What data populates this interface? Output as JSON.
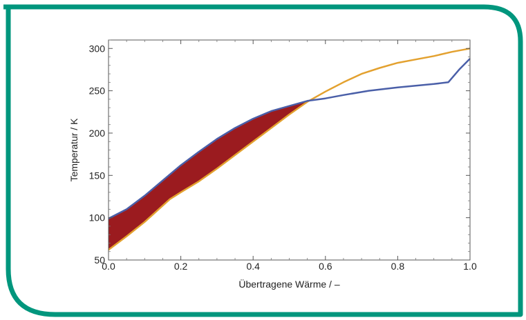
{
  "chart_data": {
    "type": "line",
    "title": "",
    "xlabel": "Übertragene Wärme / –",
    "ylabel": "Temperatur / K",
    "xlim": [
      0,
      1
    ],
    "ylim": [
      50,
      310
    ],
    "x_ticks": [
      0.0,
      0.2,
      0.4,
      0.6,
      0.8,
      1.0
    ],
    "x_tick_labels": [
      "0.0",
      "0.2",
      "0.4",
      "0.6",
      "0.8",
      "1.0"
    ],
    "y_ticks": [
      50,
      100,
      150,
      200,
      250,
      300
    ],
    "y_tick_labels": [
      "50",
      "100",
      "150",
      "200",
      "250",
      "300"
    ],
    "grid": false,
    "legend": "none",
    "series": [
      {
        "color": "#4a5fa8",
        "points": [
          [
            0.0,
            99
          ],
          [
            0.05,
            110
          ],
          [
            0.1,
            126
          ],
          [
            0.15,
            144
          ],
          [
            0.2,
            162
          ],
          [
            0.25,
            178
          ],
          [
            0.3,
            193
          ],
          [
            0.35,
            206
          ],
          [
            0.4,
            217
          ],
          [
            0.45,
            226
          ],
          [
            0.5,
            232
          ],
          [
            0.55,
            238
          ],
          [
            0.6,
            241
          ],
          [
            0.65,
            245
          ],
          [
            0.72,
            250
          ],
          [
            0.8,
            254
          ],
          [
            0.9,
            258
          ],
          [
            0.94,
            260
          ],
          [
            0.97,
            275
          ],
          [
            1.0,
            288
          ]
        ]
      },
      {
        "color": "#e3a12f",
        "points": [
          [
            0.0,
            62
          ],
          [
            0.05,
            78
          ],
          [
            0.1,
            95
          ],
          [
            0.17,
            122
          ],
          [
            0.2,
            130
          ],
          [
            0.25,
            143
          ],
          [
            0.3,
            158
          ],
          [
            0.35,
            174
          ],
          [
            0.4,
            190
          ],
          [
            0.45,
            206
          ],
          [
            0.5,
            222
          ],
          [
            0.55,
            237
          ],
          [
            0.6,
            249
          ],
          [
            0.65,
            260
          ],
          [
            0.7,
            270
          ],
          [
            0.75,
            277
          ],
          [
            0.8,
            283
          ],
          [
            0.85,
            287
          ],
          [
            0.9,
            291
          ],
          [
            0.95,
            296
          ],
          [
            1.0,
            300
          ]
        ]
      }
    ],
    "shaded_region": {
      "x_range": [
        0.0,
        0.55
      ],
      "fill": "#9b1b1f"
    }
  },
  "colors": {
    "frame": "#00967d",
    "axis": "#555555",
    "text": "#222222"
  }
}
